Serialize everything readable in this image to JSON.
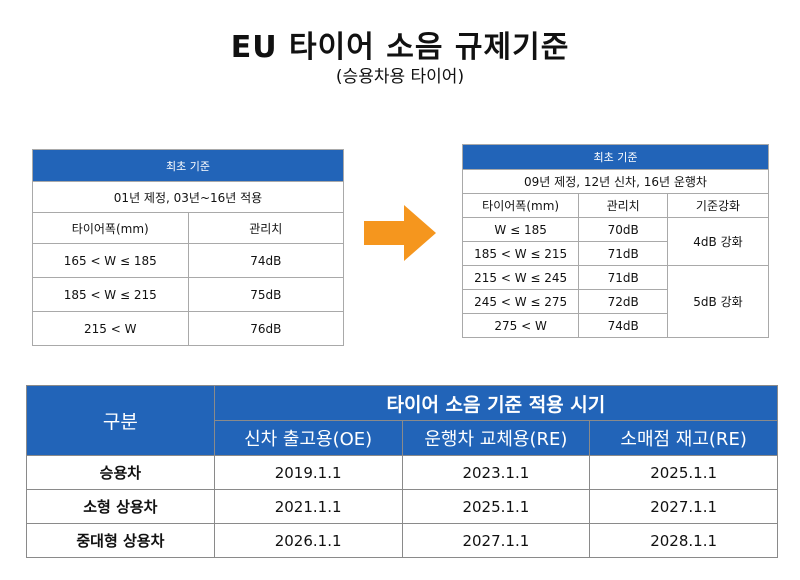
{
  "title": "EU 타이어 소음 규제기준",
  "subtitle": "(승용차용 타이어)",
  "table_initial": {
    "header": "최초 기준",
    "subheader": "01년 제정, 03년~16년 적용",
    "col_width": "타이어폭(mm)",
    "col_limit": "관리치",
    "rows": [
      {
        "width": "165 < W ≤ 185",
        "limit": "74dB"
      },
      {
        "width": "185 < W ≤ 215",
        "limit": "75dB"
      },
      {
        "width": "215 < W",
        "limit": "76dB"
      }
    ]
  },
  "table_revised": {
    "header": "최초 기준",
    "subheader": "09년 제정, 12년 신차, 16년 운행차",
    "col_width": "타이어폭(mm)",
    "col_limit": "관리치",
    "col_strength": "기준강화",
    "rows": [
      {
        "width": "W ≤ 185",
        "limit": "70dB"
      },
      {
        "width": "185 < W ≤ 215",
        "limit": "71dB"
      },
      {
        "width": "215 < W ≤ 245",
        "limit": "71dB"
      },
      {
        "width": "245 < W ≤ 275",
        "limit": "72dB"
      },
      {
        "width": "275 < W",
        "limit": "74dB"
      }
    ],
    "strength_groups": [
      "4dB 강화",
      "5dB 강화"
    ]
  },
  "arrow_color": "#f5961e",
  "header_color": "#2264b8",
  "schedule": {
    "corner": "구분",
    "title": "타이어 소음 기준 적용 시기",
    "columns": [
      "신차 출고용(OE)",
      "운행차 교체용(RE)",
      "소매점 재고(RE)"
    ],
    "rows": [
      {
        "label": "승용차",
        "values": [
          "2019.1.1",
          "2023.1.1",
          "2025.1.1"
        ]
      },
      {
        "label": "소형 상용차",
        "values": [
          "2021.1.1",
          "2025.1.1",
          "2027.1.1"
        ]
      },
      {
        "label": "중대형 상용차",
        "values": [
          "2026.1.1",
          "2027.1.1",
          "2028.1.1"
        ]
      }
    ]
  }
}
